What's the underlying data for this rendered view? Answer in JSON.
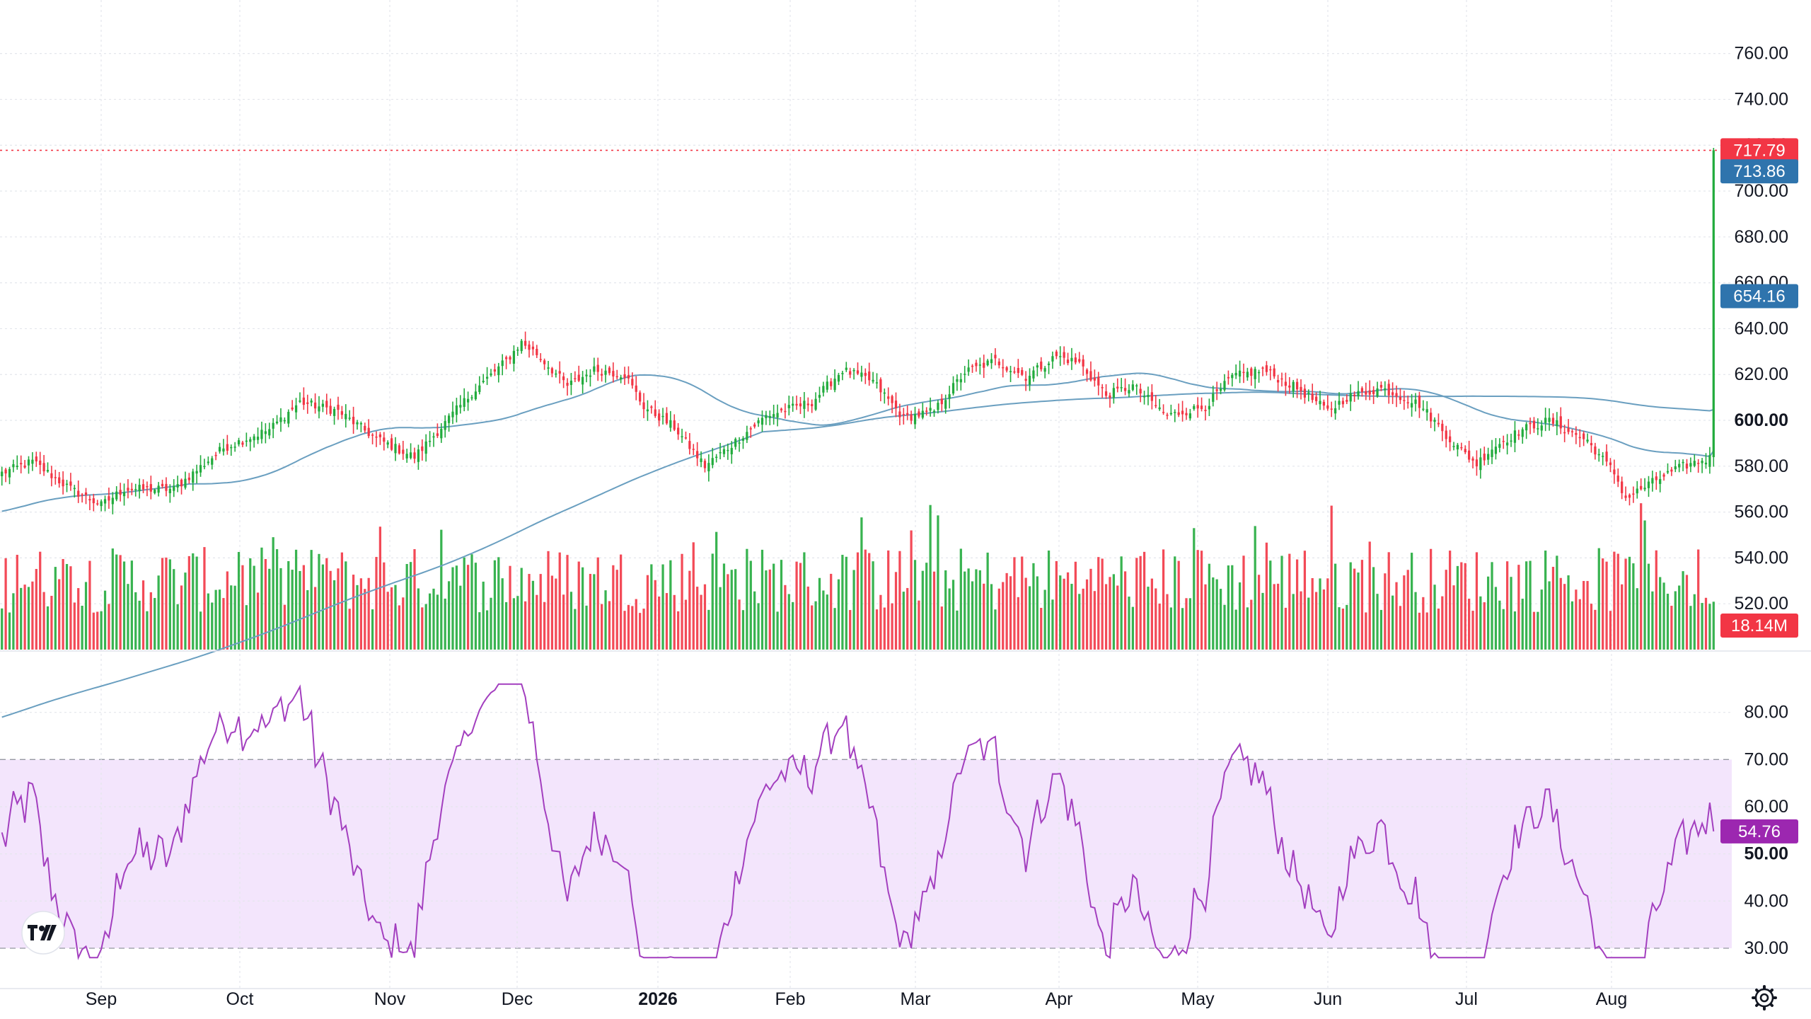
{
  "chart_data": {
    "type": "candlestick",
    "colors": {
      "up": "#22ab3d",
      "down": "#f23645",
      "ma_line": "#6a9fc0",
      "rsi_line": "#a33fbf",
      "rsi_band_fill": "#f3e5fc",
      "grid": "#e4e6ec",
      "last_price_line": "#f23645",
      "ma_tag": "#2f74ad",
      "rsi_tag": "#9c27b0"
    },
    "price_axis": {
      "ticks": [
        "760.00",
        "740.00",
        "720.00",
        "700.00",
        "680.00",
        "660.00",
        "640.00",
        "620.00",
        "600.00",
        "580.00",
        "560.00",
        "540.00",
        "520.00"
      ],
      "bold_tick": "600.00",
      "range": [
        500,
        771
      ]
    },
    "time_axis": {
      "labels": [
        "Sep",
        "Oct",
        "Nov",
        "Dec",
        "2026",
        "Feb",
        "Mar",
        "Apr",
        "May",
        "Jun",
        "Jul",
        "Aug"
      ],
      "bold_label": "2026"
    },
    "price_tags": {
      "last_price": "717.79",
      "ma_50": "713.86",
      "ma_200": "654.16",
      "volume": "18.14M"
    },
    "rsi": {
      "ticks": [
        "80.00",
        "70.00",
        "60.00",
        "50.00",
        "40.00",
        "30.00"
      ],
      "bold_tick": "50.00",
      "overbought": 70,
      "oversold": 30,
      "range": [
        27,
        87
      ],
      "last": "54.76"
    },
    "anchors": [
      [
        0,
        577
      ],
      [
        8,
        582
      ],
      [
        18,
        570
      ],
      [
        26,
        563
      ],
      [
        32,
        570
      ],
      [
        45,
        570
      ],
      [
        58,
        588
      ],
      [
        70,
        596
      ],
      [
        78,
        608
      ],
      [
        88,
        604
      ],
      [
        98,
        592
      ],
      [
        108,
        584
      ],
      [
        115,
        597
      ],
      [
        123,
        612
      ],
      [
        132,
        626
      ],
      [
        136,
        634
      ],
      [
        140,
        629
      ],
      [
        148,
        615
      ],
      [
        155,
        622
      ],
      [
        163,
        620
      ],
      [
        168,
        606
      ],
      [
        176,
        597
      ],
      [
        184,
        580
      ],
      [
        190,
        588
      ],
      [
        200,
        602
      ],
      [
        212,
        608
      ],
      [
        220,
        622
      ],
      [
        228,
        617
      ],
      [
        236,
        601
      ],
      [
        244,
        604
      ],
      [
        252,
        621
      ],
      [
        260,
        626
      ],
      [
        268,
        619
      ],
      [
        276,
        628
      ],
      [
        282,
        625
      ],
      [
        289,
        611
      ],
      [
        296,
        615
      ],
      [
        305,
        602
      ],
      [
        315,
        606
      ],
      [
        322,
        619
      ],
      [
        330,
        622
      ],
      [
        340,
        613
      ],
      [
        347,
        604
      ],
      [
        352,
        610
      ],
      [
        361,
        614
      ],
      [
        371,
        607
      ],
      [
        380,
        590
      ],
      [
        386,
        581
      ],
      [
        390,
        588
      ],
      [
        398,
        596
      ],
      [
        405,
        600
      ],
      [
        415,
        591
      ],
      [
        422,
        577
      ],
      [
        425,
        566
      ],
      [
        433,
        574
      ],
      [
        440,
        580
      ],
      [
        448,
        584
      ]
    ],
    "series_count": 448,
    "volume_max": 44
  }
}
